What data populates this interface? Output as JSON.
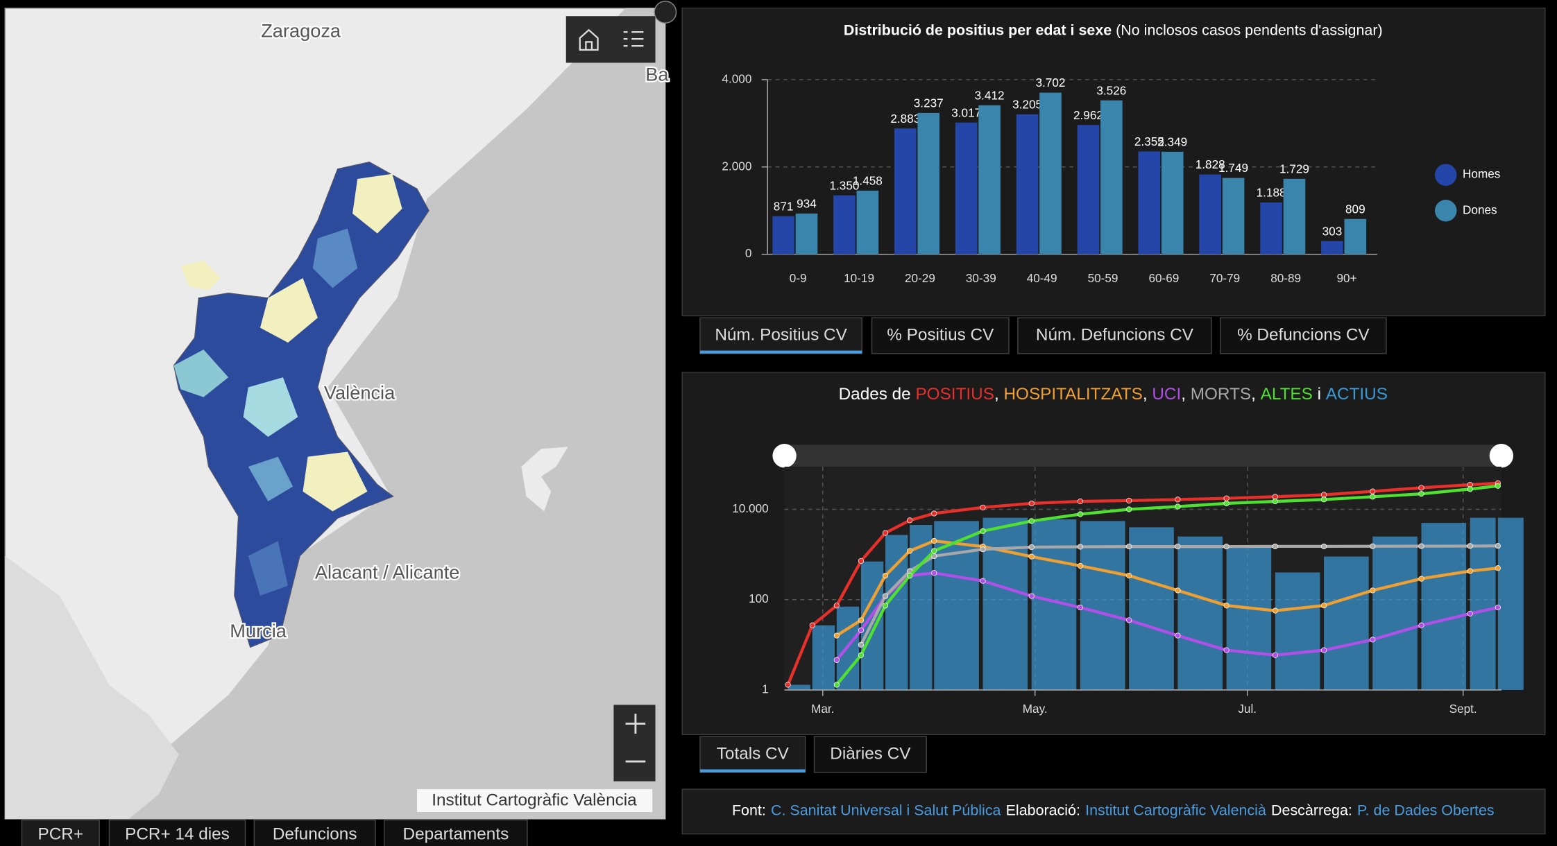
{
  "map": {
    "labels": [
      "Zaragoza",
      "València",
      "Alacant / Alicante",
      "Murcia",
      "Ba"
    ],
    "attribution": "Institut Cartogràfic València",
    "tabs": [
      "PCR+",
      "PCR+ 14 dies",
      "Defuncions",
      "Departaments"
    ],
    "active_tab": 0
  },
  "chart_data": [
    {
      "type": "bar",
      "title": "Distribució de positius per edat i sexe",
      "subtitle": " (No inclosos casos pendents d'assignar)",
      "categories": [
        "0-9",
        "10-19",
        "20-29",
        "30-39",
        "40-49",
        "50-59",
        "60-69",
        "70-79",
        "80-89",
        "90+"
      ],
      "series": [
        {
          "name": "Homes",
          "color": "#2346a8",
          "values": [
            871,
            1350,
            2883,
            3017,
            3205,
            2962,
            2355,
            1828,
            1188,
            303
          ],
          "value_labels": [
            "871",
            "1.350",
            "2.883",
            "3.017",
            "3.205",
            "2.962",
            "2.355",
            "1.828",
            "1.188",
            "303"
          ]
        },
        {
          "name": "Dones",
          "color": "#3a85ac",
          "values": [
            934,
            1458,
            3237,
            3412,
            3702,
            3526,
            2349,
            1749,
            1729,
            809
          ],
          "value_labels": [
            "934",
            "1.458",
            "3.237",
            "3.412",
            "3.702",
            "3.526",
            "2.349",
            "1.749",
            "1.729",
            "809"
          ]
        }
      ],
      "ylim": [
        0,
        4000
      ],
      "yticks": [
        0,
        {
          "value": 2000,
          "label": "2.000"
        },
        {
          "value": 4000,
          "label": "4.000"
        }
      ],
      "grid": true,
      "legend": "right"
    },
    {
      "type": "line",
      "title_parts": [
        "Dades de ",
        ", ",
        ", ",
        ", ",
        ", ",
        " i "
      ],
      "x": [
        -10,
        -3,
        4,
        11,
        18,
        25,
        32,
        46,
        60,
        74,
        88,
        102,
        116,
        130,
        144,
        158,
        172,
        186,
        194
      ],
      "xlim": [
        -11,
        195
      ],
      "xticks": [
        {
          "value": 0,
          "label": "Mar."
        },
        {
          "value": 61,
          "label": "May."
        },
        {
          "value": 122,
          "label": "Jul."
        },
        {
          "value": 184,
          "label": "Sept."
        }
      ],
      "ylim": [
        1,
        88000
      ],
      "yticks": [
        1,
        100,
        {
          "value": 10000,
          "label": "10.000"
        }
      ],
      "log": true,
      "grid": true,
      "series": [
        {
          "name": "POSITIUS",
          "color": "#e8302a",
          "kind": "line",
          "values": [
            1.3,
            27,
            74,
            720,
            3000,
            5700,
            8100,
            11000,
            13500,
            15000,
            15600,
            16500,
            17500,
            19000,
            21000,
            25000,
            30000,
            35000,
            38000
          ]
        },
        {
          "name": "HOSPITALITZATS",
          "color": "#f0a030",
          "kind": "line",
          "values": [
            null,
            null,
            16,
            35,
            340,
            1200,
            2000,
            1500,
            900,
            560,
            340,
            160,
            74,
            57,
            74,
            160,
            290,
            430,
            500
          ]
        },
        {
          "name": "UCI",
          "color": "#b050e8",
          "kind": "line",
          "values": [
            null,
            null,
            4.6,
            21,
            120,
            340,
            390,
            260,
            120,
            67,
            35,
            16,
            7.6,
            5.9,
            7.6,
            13,
            27,
            49,
            67
          ]
        },
        {
          "name": "MORTS",
          "color": "#a8a8a8",
          "kind": "line",
          "values": [
            null,
            null,
            null,
            10,
            120,
            430,
            920,
            1300,
            1450,
            1480,
            1500,
            1500,
            1500,
            1510,
            1510,
            1520,
            1530,
            1540,
            1550
          ]
        },
        {
          "name": "ALTES",
          "color": "#50e030",
          "kind": "line",
          "values": [
            null,
            null,
            1.3,
            5.9,
            74,
            340,
            1200,
            3300,
            5500,
            7800,
            10000,
            11500,
            13500,
            15000,
            16500,
            19000,
            22000,
            28000,
            33000
          ]
        },
        {
          "name": "ACTIUS",
          "color": "#3a9ad8",
          "kind": "bar",
          "values": [
            1.3,
            27,
            70,
            700,
            2700,
            4500,
            5500,
            6500,
            6000,
            5500,
            4000,
            2500,
            1500,
            400,
            900,
            2500,
            5000,
            6500,
            6500
          ]
        }
      ]
    }
  ],
  "top_tabs": [
    "Núm. Positius CV",
    "% Positius CV",
    "Núm. Defuncions CV",
    "% Defuncions CV"
  ],
  "top_active": 0,
  "bottom_tabs": [
    "Totals CV",
    "Diàries CV"
  ],
  "bottom_active": 0,
  "footer": [
    {
      "label": "Font:",
      "link": "C. Sanitat Universal i Salut Pública"
    },
    {
      "label": "Elaboració:",
      "link": "Institut Cartogràfic Valencià"
    },
    {
      "label": "Descàrrega:",
      "link": "P. de Dades Obertes"
    }
  ]
}
